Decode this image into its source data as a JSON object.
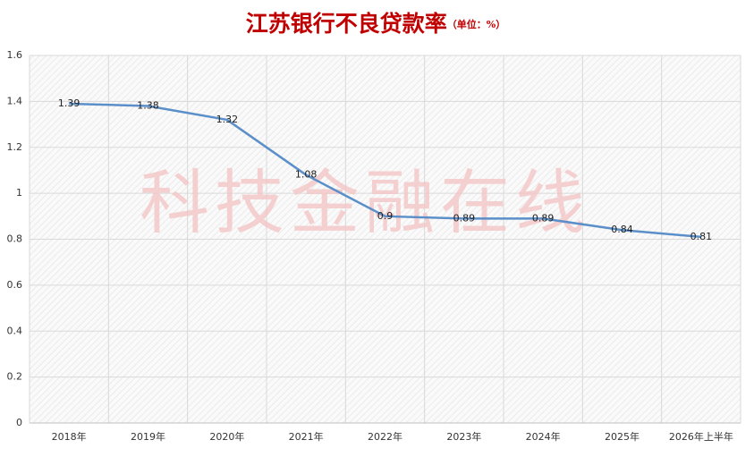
{
  "chart_data": {
    "type": "line",
    "title": "江苏银行不良贷款率",
    "subtitle": "（单位：%）",
    "watermark": "科技金融在线",
    "categories": [
      "2018年",
      "2019年",
      "2020年",
      "2021年",
      "2022年",
      "2023年",
      "2024年",
      "2025年",
      "2026年上半年"
    ],
    "series": [
      {
        "color": "#5b8fc9",
        "values": [
          1.39,
          1.38,
          1.32,
          1.08,
          0.9,
          0.89,
          0.89,
          0.84,
          0.81
        ]
      }
    ],
    "ylim": [
      0,
      1.6
    ],
    "yticks": [
      0,
      0.2,
      0.4,
      0.6,
      0.8,
      1,
      1.2,
      1.4,
      1.6
    ],
    "grid": true
  }
}
